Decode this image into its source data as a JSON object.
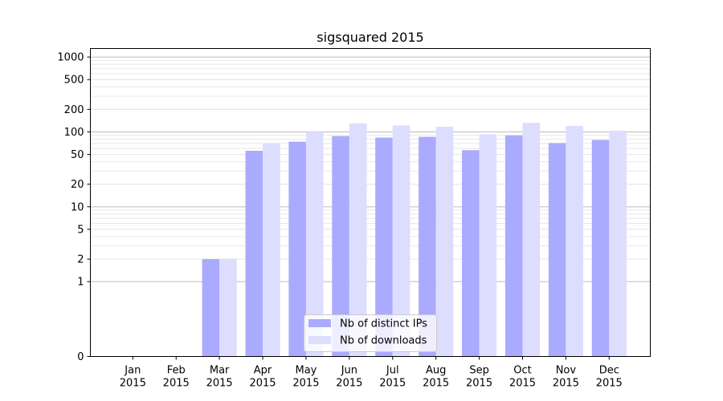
{
  "chart_data": {
    "type": "bar",
    "title": "sigsquared 2015",
    "xlabel": "",
    "ylabel": "",
    "yscale": "symlog",
    "ylim": [
      0,
      1300
    ],
    "yticks": [
      0,
      1,
      2,
      5,
      10,
      20,
      50,
      100,
      200,
      500,
      1000
    ],
    "grid": "y",
    "legend_position": "bottom-center",
    "categories": [
      "Jan\n2015",
      "Feb\n2015",
      "Mar\n2015",
      "Apr\n2015",
      "May\n2015",
      "Jun\n2015",
      "Jul\n2015",
      "Aug\n2015",
      "Sep\n2015",
      "Oct\n2015",
      "Nov\n2015",
      "Dec\n2015"
    ],
    "series": [
      {
        "name": "Nb of distinct IPs",
        "color": "#aaaaff",
        "values": [
          0,
          0,
          2,
          56,
          74,
          88,
          84,
          86,
          57,
          90,
          71,
          78
        ]
      },
      {
        "name": "Nb of downloads",
        "color": "#ddddff",
        "values": [
          0,
          0,
          2,
          71,
          100,
          130,
          122,
          117,
          93,
          132,
          120,
          104
        ]
      }
    ]
  }
}
